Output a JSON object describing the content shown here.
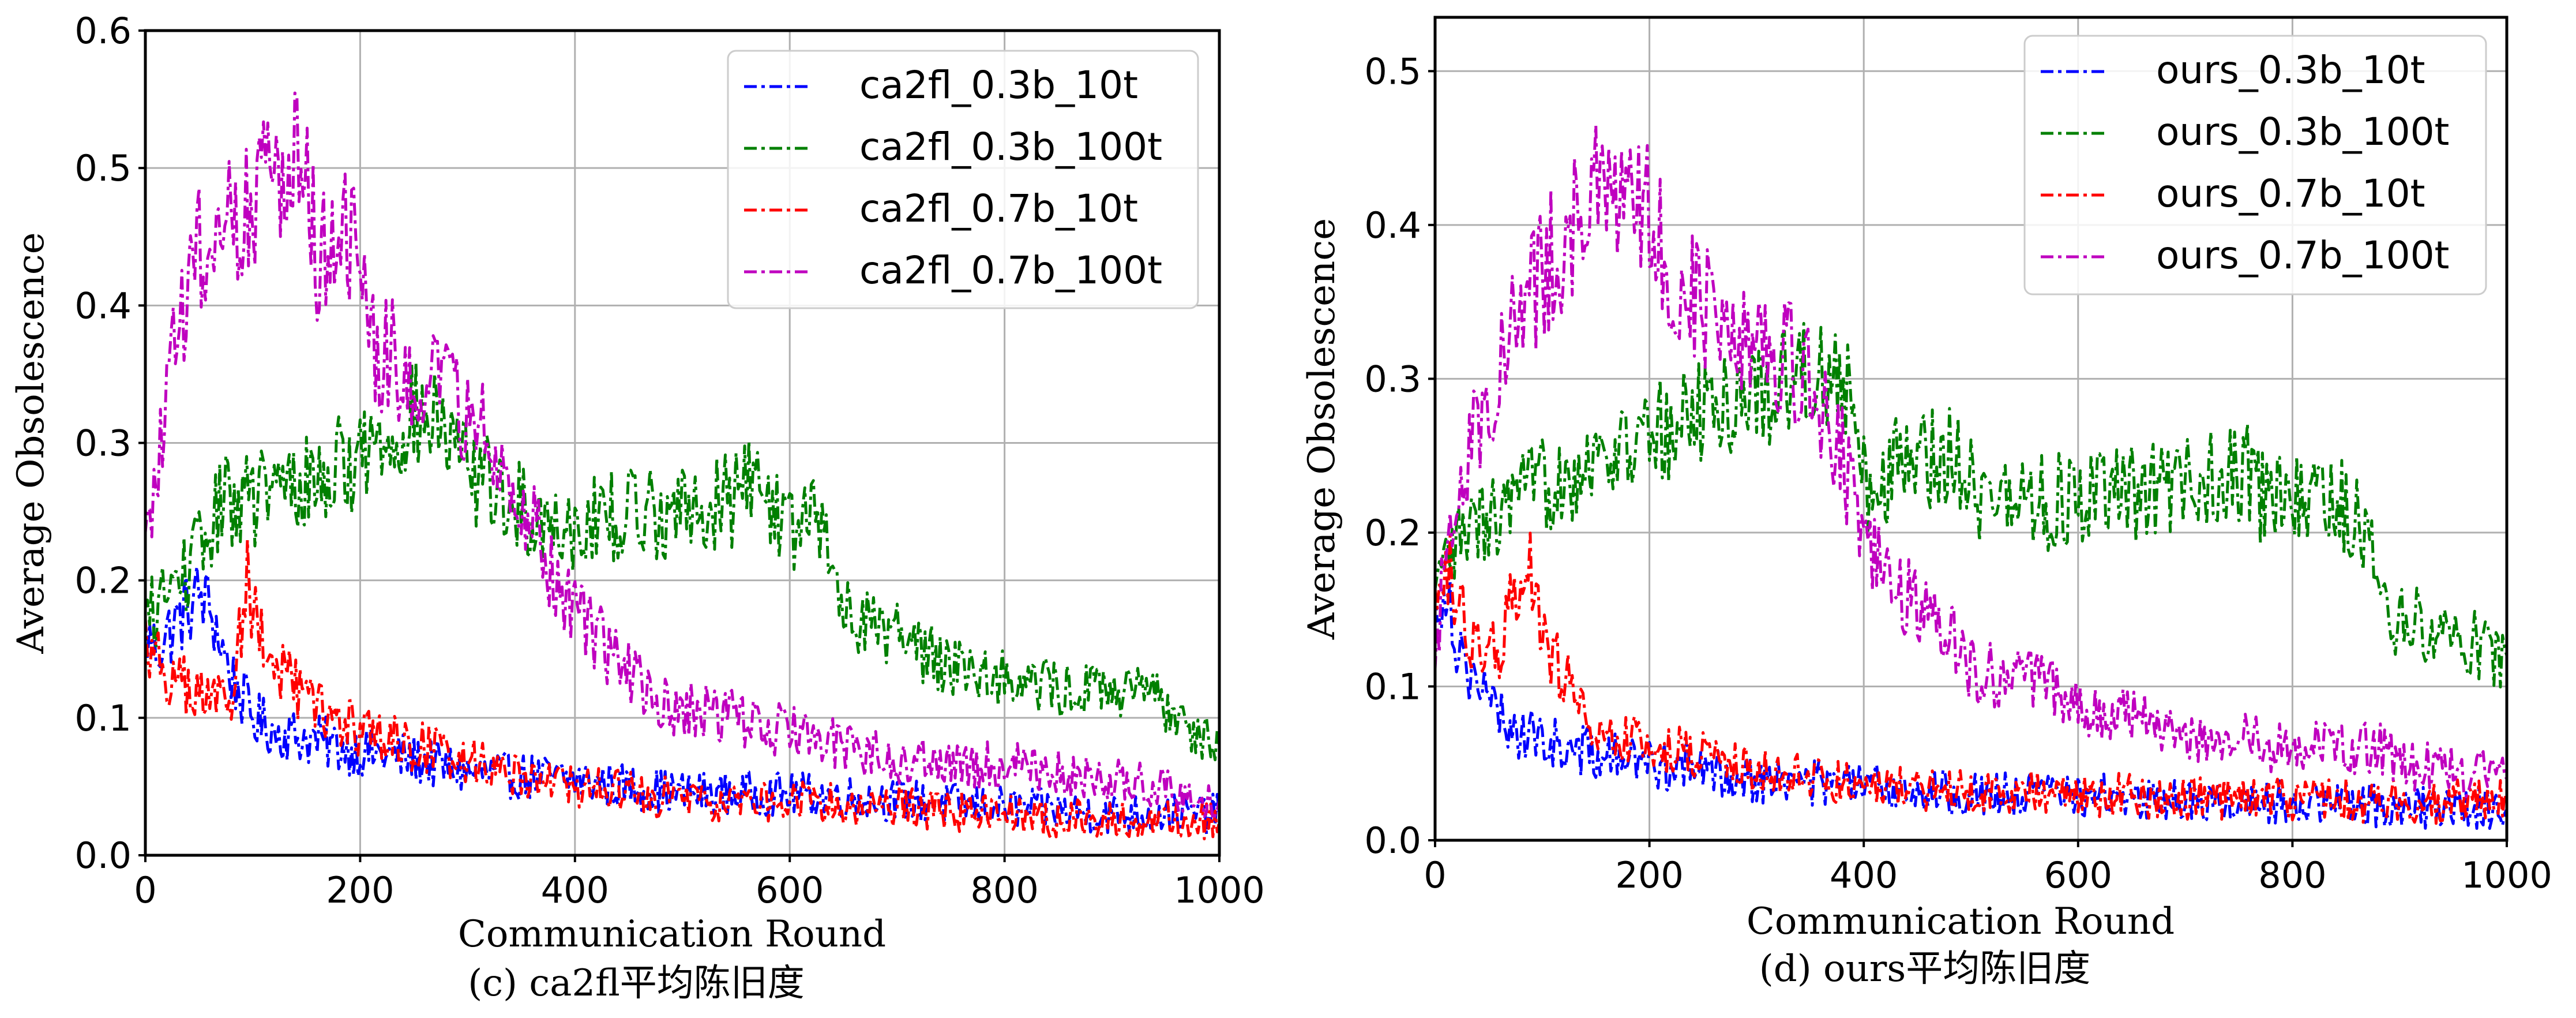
{
  "chart_data": [
    {
      "type": "line",
      "caption": "(c) ca2fl平均陈旧度",
      "xlabel": "Communication Round",
      "ylabel": "Average Obsolescence",
      "xlim": [
        0,
        1000
      ],
      "ylim": [
        0,
        0.6
      ],
      "xticks": [
        "0",
        "200",
        "400",
        "600",
        "800",
        "1000"
      ],
      "yticks": [
        "0.0",
        "0.1",
        "0.2",
        "0.3",
        "0.4",
        "0.5",
        "0.6"
      ],
      "grid": true,
      "legend_position": "top-right",
      "series": [
        {
          "name": "ca2fl_0.3b_10t",
          "color": "#0000ff",
          "linestyle": "dash-dot",
          "x": [
            0,
            10,
            20,
            30,
            40,
            50,
            60,
            80,
            100,
            120,
            150,
            200,
            250,
            300,
            400,
            500,
            600,
            700,
            800,
            900,
            1000
          ],
          "y": [
            0.16,
            0.15,
            0.16,
            0.17,
            0.18,
            0.19,
            0.18,
            0.13,
            0.1,
            0.09,
            0.085,
            0.075,
            0.07,
            0.06,
            0.055,
            0.045,
            0.045,
            0.04,
            0.035,
            0.03,
            0.03
          ]
        },
        {
          "name": "ca2fl_0.3b_100t",
          "color": "#008000",
          "linestyle": "dash-dot",
          "x": [
            0,
            20,
            50,
            75,
            100,
            150,
            200,
            250,
            275,
            300,
            320,
            350,
            400,
            450,
            500,
            550,
            560,
            600,
            630,
            650,
            700,
            750,
            800,
            850,
            900,
            950,
            1000
          ],
          "y": [
            0.17,
            0.19,
            0.22,
            0.26,
            0.26,
            0.27,
            0.29,
            0.32,
            0.31,
            0.28,
            0.27,
            0.25,
            0.24,
            0.25,
            0.25,
            0.26,
            0.28,
            0.24,
            0.24,
            0.18,
            0.16,
            0.14,
            0.13,
            0.12,
            0.12,
            0.11,
            0.08
          ]
        },
        {
          "name": "ca2fl_0.7b_10t",
          "color": "#ff0000",
          "linestyle": "dash-dot",
          "x": [
            0,
            20,
            40,
            60,
            80,
            95,
            110,
            150,
            200,
            250,
            300,
            400,
            500,
            600,
            700,
            800,
            900,
            1000
          ],
          "y": [
            0.16,
            0.13,
            0.12,
            0.11,
            0.12,
            0.2,
            0.15,
            0.11,
            0.09,
            0.08,
            0.07,
            0.05,
            0.04,
            0.04,
            0.035,
            0.03,
            0.025,
            0.025
          ]
        },
        {
          "name": "ca2fl_0.7b_100t",
          "color": "#bf00bf",
          "linestyle": "dash-dot",
          "x": [
            0,
            10,
            20,
            40,
            60,
            80,
            100,
            120,
            145,
            160,
            180,
            200,
            210,
            250,
            300,
            340,
            380,
            430,
            480,
            550,
            600,
            700,
            800,
            900,
            1000
          ],
          "y": [
            0.22,
            0.27,
            0.33,
            0.42,
            0.45,
            0.47,
            0.48,
            0.49,
            0.53,
            0.44,
            0.45,
            0.43,
            0.37,
            0.35,
            0.32,
            0.28,
            0.2,
            0.15,
            0.11,
            0.1,
            0.09,
            0.07,
            0.065,
            0.055,
            0.04
          ]
        }
      ]
    },
    {
      "type": "line",
      "caption": "(d) ours平均陈旧度",
      "xlabel": "Communication Round",
      "ylabel": "Average Obsolescence",
      "xlim": [
        0,
        1000
      ],
      "ylim": [
        0,
        0.535
      ],
      "xticks": [
        "0",
        "200",
        "400",
        "600",
        "800",
        "1000"
      ],
      "yticks": [
        "0.0",
        "0.1",
        "0.2",
        "0.3",
        "0.4",
        "0.5"
      ],
      "grid": true,
      "legend_position": "top-right",
      "series": [
        {
          "name": "ours_0.3b_10t",
          "color": "#0000ff",
          "linestyle": "dash-dot",
          "x": [
            0,
            10,
            20,
            40,
            60,
            80,
            100,
            150,
            200,
            250,
            300,
            400,
            500,
            600,
            700,
            800,
            900,
            1000
          ],
          "y": [
            0.15,
            0.17,
            0.13,
            0.1,
            0.08,
            0.07,
            0.065,
            0.055,
            0.05,
            0.045,
            0.04,
            0.035,
            0.03,
            0.03,
            0.025,
            0.025,
            0.022,
            0.02
          ]
        },
        {
          "name": "ours_0.3b_100t",
          "color": "#008000",
          "linestyle": "dash-dot",
          "x": [
            0,
            10,
            30,
            60,
            100,
            150,
            200,
            250,
            300,
            330,
            360,
            385,
            400,
            450,
            500,
            510,
            600,
            700,
            760,
            770,
            840,
            870,
            880,
            900,
            950,
            980,
            1000
          ],
          "y": [
            0.15,
            0.18,
            0.2,
            0.21,
            0.23,
            0.25,
            0.26,
            0.28,
            0.29,
            0.3,
            0.31,
            0.29,
            0.23,
            0.25,
            0.25,
            0.22,
            0.22,
            0.23,
            0.24,
            0.22,
            0.22,
            0.2,
            0.16,
            0.14,
            0.14,
            0.12,
            0.12
          ]
        },
        {
          "name": "ours_0.7b_10t",
          "color": "#ff0000",
          "linestyle": "dash-dot",
          "x": [
            0,
            10,
            20,
            40,
            60,
            80,
            85,
            100,
            150,
            200,
            250,
            300,
            400,
            500,
            600,
            700,
            800,
            900,
            1000
          ],
          "y": [
            0.15,
            0.19,
            0.15,
            0.12,
            0.12,
            0.18,
            0.19,
            0.13,
            0.07,
            0.06,
            0.055,
            0.045,
            0.035,
            0.033,
            0.03,
            0.028,
            0.027,
            0.025,
            0.025
          ]
        },
        {
          "name": "ours_0.7b_100t",
          "color": "#bf00bf",
          "linestyle": "dash-dot",
          "x": [
            0,
            10,
            20,
            40,
            60,
            80,
            100,
            120,
            150,
            160,
            200,
            220,
            250,
            300,
            350,
            380,
            400,
            450,
            480,
            500,
            580,
            600,
            650,
            700,
            800,
            880,
            900,
            1000
          ],
          "y": [
            0.1,
            0.2,
            0.23,
            0.27,
            0.31,
            0.34,
            0.37,
            0.39,
            0.42,
            0.41,
            0.41,
            0.37,
            0.35,
            0.33,
            0.3,
            0.25,
            0.19,
            0.15,
            0.14,
            0.11,
            0.1,
            0.085,
            0.08,
            0.07,
            0.06,
            0.06,
            0.05,
            0.04
          ]
        }
      ]
    }
  ]
}
